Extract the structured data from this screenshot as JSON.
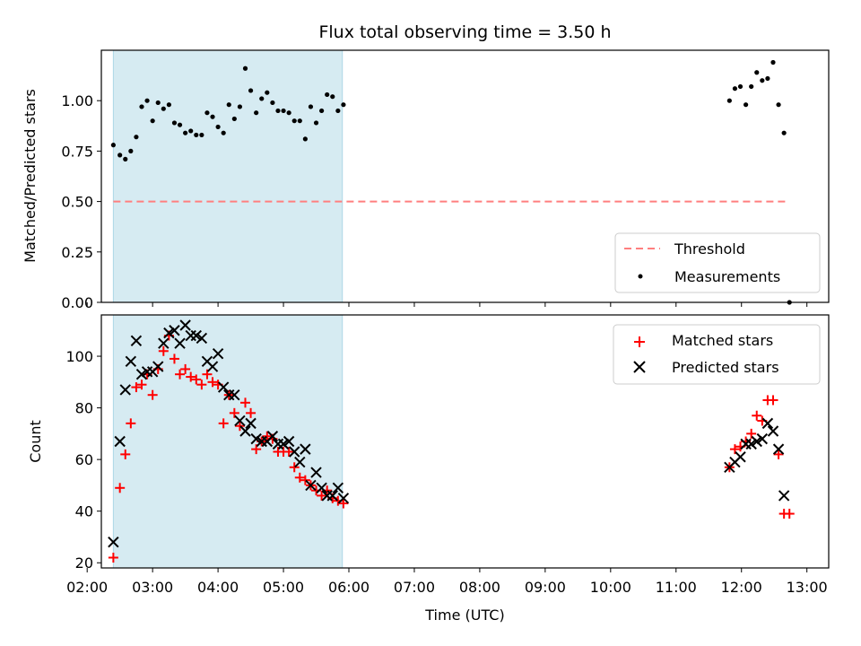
{
  "colors": {
    "shade": "#add8e6",
    "threshold": "#ff7f7f",
    "matched": "#ff0000",
    "predicted": "#000000",
    "measurements": "#000000"
  },
  "chart_data": [
    {
      "type": "scatter",
      "title": "Flux total observing time = 3.50 h",
      "xlabel": "",
      "ylabel": "Matched/Predicted stars",
      "ylim": [
        0,
        1.25
      ],
      "yticks": [
        "0.00",
        "0.25",
        "0.50",
        "0.75",
        "1.00"
      ],
      "xlim": [
        "02:13",
        "13:20"
      ],
      "shaded_region": [
        "02:24",
        "05:54"
      ],
      "legend": {
        "placement": "lower-right",
        "entries": [
          "Threshold",
          "Measurements"
        ]
      },
      "threshold": {
        "name": "Threshold",
        "y": 0.5,
        "x": [
          "02:24",
          "12:44"
        ]
      },
      "series": [
        {
          "name": "Measurements",
          "x": [
            "02:24",
            "02:30",
            "02:35",
            "02:40",
            "02:45",
            "02:50",
            "02:55",
            "03:00",
            "03:05",
            "03:10",
            "03:15",
            "03:20",
            "03:25",
            "03:30",
            "03:35",
            "03:40",
            "03:45",
            "03:50",
            "03:55",
            "04:00",
            "04:05",
            "04:10",
            "04:15",
            "04:20",
            "04:25",
            "04:30",
            "04:35",
            "04:40",
            "04:45",
            "04:50",
            "04:55",
            "05:00",
            "05:05",
            "05:10",
            "05:15",
            "05:20",
            "05:25",
            "05:30",
            "05:35",
            "05:40",
            "05:45",
            "05:50",
            "05:55",
            "11:49",
            "11:54",
            "11:59",
            "12:04",
            "12:09",
            "12:14",
            "12:19",
            "12:24",
            "12:29",
            "12:34",
            "12:39",
            "12:44"
          ],
          "y": [
            0.78,
            0.73,
            0.71,
            0.75,
            0.82,
            0.97,
            1.0,
            0.9,
            0.99,
            0.96,
            0.98,
            0.89,
            0.88,
            0.84,
            0.85,
            0.83,
            0.83,
            0.94,
            0.92,
            0.87,
            0.84,
            0.98,
            0.91,
            0.97,
            1.16,
            1.05,
            0.94,
            1.01,
            1.04,
            0.99,
            0.95,
            0.95,
            0.94,
            0.9,
            0.9,
            0.81,
            0.97,
            0.89,
            0.95,
            1.03,
            1.02,
            0.95,
            0.98,
            1.0,
            1.06,
            1.07,
            0.98,
            1.07,
            1.14,
            1.1,
            1.11,
            1.19,
            0.98,
            0.84,
            0.0
          ]
        }
      ]
    },
    {
      "type": "scatter",
      "title": "",
      "xlabel": "Time (UTC)",
      "ylabel": "Count",
      "ylim": [
        18,
        116
      ],
      "yticks": [
        "20",
        "40",
        "60",
        "80",
        "100"
      ],
      "xlim": [
        "02:13",
        "13:20"
      ],
      "xticks": [
        "02:00",
        "03:00",
        "04:00",
        "05:00",
        "06:00",
        "07:00",
        "08:00",
        "09:00",
        "10:00",
        "11:00",
        "12:00",
        "13:00"
      ],
      "shaded_region": [
        "02:24",
        "05:54"
      ],
      "legend": {
        "placement": "top-right",
        "entries": [
          "Matched stars",
          "Predicted stars"
        ]
      },
      "series": [
        {
          "name": "Matched stars",
          "marker": "+",
          "x": [
            "02:24",
            "02:30",
            "02:35",
            "02:40",
            "02:45",
            "02:50",
            "02:55",
            "03:00",
            "03:05",
            "03:10",
            "03:15",
            "03:20",
            "03:25",
            "03:30",
            "03:35",
            "03:40",
            "03:45",
            "03:50",
            "03:55",
            "04:00",
            "04:05",
            "04:10",
            "04:15",
            "04:20",
            "04:25",
            "04:30",
            "04:35",
            "04:40",
            "04:45",
            "04:50",
            "04:55",
            "05:00",
            "05:05",
            "05:10",
            "05:15",
            "05:20",
            "05:25",
            "05:30",
            "05:35",
            "05:40",
            "05:45",
            "05:50",
            "05:55",
            "11:49",
            "11:54",
            "11:59",
            "12:04",
            "12:09",
            "12:14",
            "12:19",
            "12:24",
            "12:29",
            "12:34",
            "12:39",
            "12:44"
          ],
          "y": [
            22,
            49,
            62,
            74,
            88,
            89,
            93,
            85,
            95,
            102,
            108,
            99,
            93,
            95,
            92,
            91,
            89,
            93,
            90,
            89,
            74,
            85,
            78,
            73,
            82,
            78,
            64,
            67,
            69,
            68,
            63,
            63,
            63,
            57,
            53,
            52,
            50,
            48,
            46,
            48,
            45,
            44,
            43,
            57,
            64,
            65,
            67,
            70,
            77,
            75,
            83,
            83,
            62,
            39,
            39
          ]
        },
        {
          "name": "Predicted stars",
          "marker": "x",
          "x": [
            "02:24",
            "02:30",
            "02:35",
            "02:40",
            "02:45",
            "02:50",
            "02:55",
            "03:00",
            "03:05",
            "03:10",
            "03:15",
            "03:20",
            "03:25",
            "03:30",
            "03:35",
            "03:40",
            "03:45",
            "03:50",
            "03:55",
            "04:00",
            "04:05",
            "04:10",
            "04:15",
            "04:20",
            "04:25",
            "04:30",
            "04:35",
            "04:40",
            "04:45",
            "04:50",
            "04:55",
            "05:00",
            "05:05",
            "05:10",
            "05:15",
            "05:20",
            "05:25",
            "05:30",
            "05:35",
            "05:40",
            "05:45",
            "05:50",
            "05:55",
            "11:49",
            "11:54",
            "11:59",
            "12:04",
            "12:09",
            "12:14",
            "12:19",
            "12:24",
            "12:29",
            "12:34",
            "12:39"
          ],
          "y": [
            28,
            67,
            87,
            98,
            106,
            93,
            94,
            94,
            96,
            105,
            109,
            110,
            105,
            112,
            108,
            108,
            107,
            98,
            96,
            101,
            88,
            85,
            85,
            75,
            71,
            74,
            68,
            67,
            67,
            69,
            66,
            66,
            67,
            63,
            59,
            64,
            50,
            55,
            49,
            46,
            46,
            49,
            45,
            57,
            59,
            61,
            66,
            66,
            67,
            68,
            74,
            71,
            64,
            46
          ]
        }
      ]
    }
  ]
}
